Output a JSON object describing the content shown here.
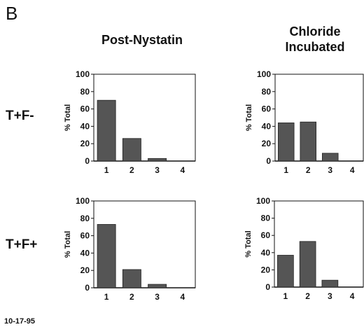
{
  "panel_letter": "B",
  "columns": [
    "Post-Nystatin",
    "Chloride\nIncubated"
  ],
  "rows": [
    "T+F-",
    "T+F+"
  ],
  "date": "10-17-95",
  "chart_data": [
    {
      "type": "bar",
      "row": "T+F-",
      "column": "Post-Nystatin",
      "categories": [
        "1",
        "2",
        "3",
        "4"
      ],
      "values": [
        70,
        26,
        3,
        0
      ],
      "ylabel": "% Total",
      "ylim": [
        0,
        100
      ],
      "yticks": [
        0,
        20,
        40,
        60,
        80,
        100
      ]
    },
    {
      "type": "bar",
      "row": "T+F-",
      "column": "Chloride Incubated",
      "categories": [
        "1",
        "2",
        "3",
        "4"
      ],
      "values": [
        44,
        45,
        9,
        0
      ],
      "ylabel": "% Total",
      "ylim": [
        0,
        100
      ],
      "yticks": [
        0,
        20,
        40,
        60,
        80,
        100
      ]
    },
    {
      "type": "bar",
      "row": "T+F+",
      "column": "Post-Nystatin",
      "categories": [
        "1",
        "2",
        "3",
        "4"
      ],
      "values": [
        73,
        21,
        4,
        0
      ],
      "ylabel": "% Total",
      "ylim": [
        0,
        100
      ],
      "yticks": [
        0,
        20,
        40,
        60,
        80,
        100
      ]
    },
    {
      "type": "bar",
      "row": "T+F+",
      "column": "Chloride Incubated",
      "categories": [
        "1",
        "2",
        "3",
        "4"
      ],
      "values": [
        37,
        53,
        8,
        0
      ],
      "ylabel": "% Total",
      "ylim": [
        0,
        100
      ],
      "yticks": [
        0,
        20,
        40,
        60,
        80,
        100
      ]
    }
  ],
  "colors": {
    "bar": "#555555",
    "axis": "#111111"
  }
}
